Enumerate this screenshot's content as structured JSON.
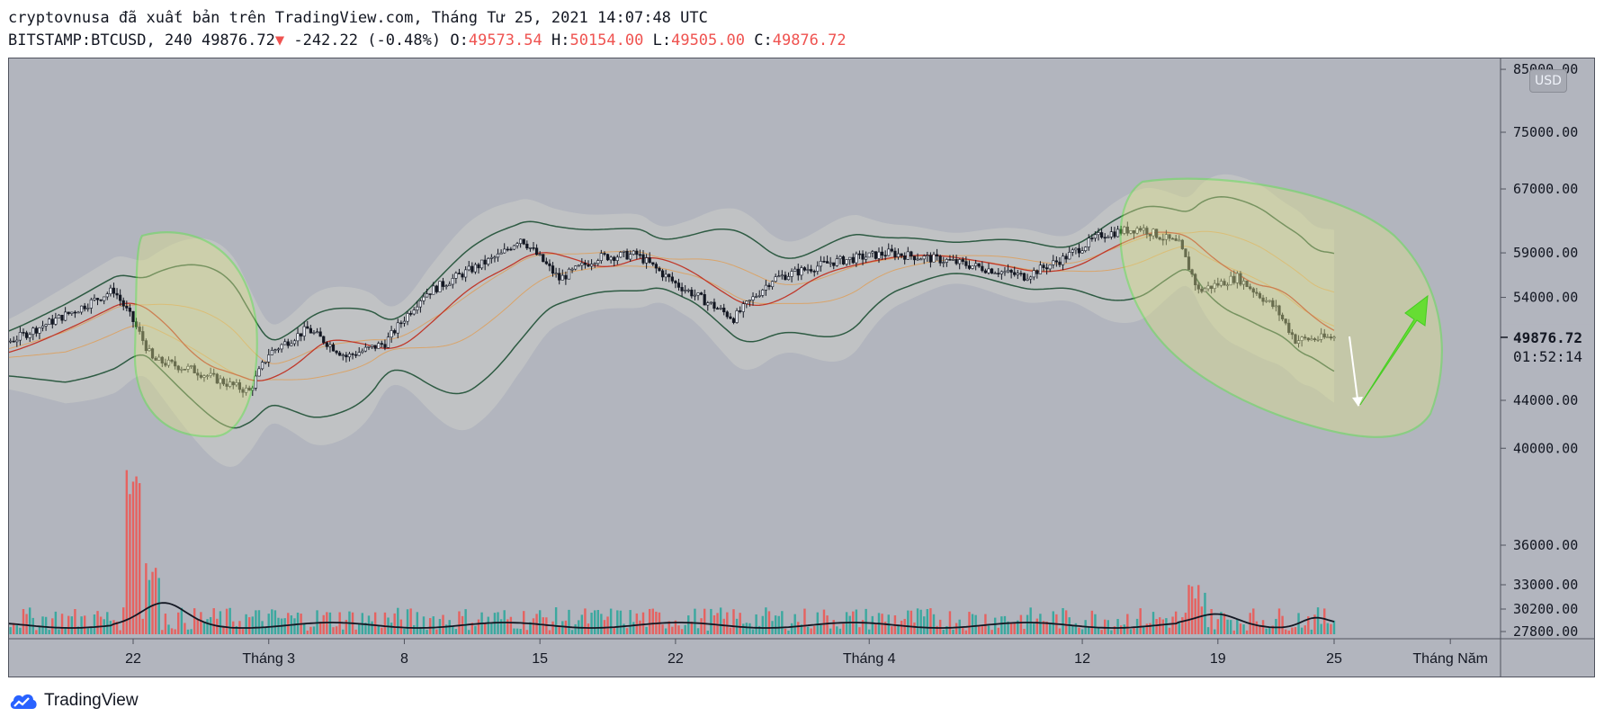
{
  "header": {
    "line1": "cryptovnusa đã xuất bản trên TradingView.com, Tháng Tư 25, 2021 14:07:48 UTC",
    "symbol": "BITSTAMP:BTCUSD, 240",
    "last": "49876.72",
    "arrow": "▼",
    "change": "-242.22 (-0.48%)",
    "o_label": "O:",
    "o_val": "49573.54",
    "h_label": "H:",
    "h_val": "50154.00",
    "l_label": "L:",
    "l_val": "49505.00",
    "c_label": "C:",
    "c_val": "49876.72"
  },
  "currency_badge": "USD",
  "brand": "TradingView",
  "chart_data": {
    "type": "candlestick",
    "symbol": "BITSTAMP:BTCUSD",
    "interval": "240",
    "y_scale": "log",
    "ylim": [
      43500,
      83500
    ],
    "price_ticks": [
      85000,
      75000,
      67000,
      59000,
      54000,
      44000,
      40000,
      36000,
      33000,
      30200,
      27800
    ],
    "price_tick_labels": [
      "85000.00",
      "75000.00",
      "67000.00",
      "59000.00",
      "54000.00",
      "44000.00",
      "40000.00",
      "36000.00",
      "33000.00",
      "30200.00",
      "27800.00"
    ],
    "last_price_label": "49876.72",
    "countdown_label": "01:52:14",
    "x_ticks": [
      "22",
      "Tháng 3",
      "8",
      "15",
      "22",
      "Tháng 4",
      "12",
      "19",
      "25",
      "Tháng Năm"
    ],
    "x_tick_dates": [
      "2021-02-22",
      "2021-03-01",
      "2021-03-08",
      "2021-03-15",
      "2021-03-22",
      "2021-04-01",
      "2021-04-12",
      "2021-04-19",
      "2021-04-25",
      "2021-05-01"
    ],
    "price_path": {
      "dates": [
        "2021-02-12",
        "2021-02-14",
        "2021-02-16",
        "2021-02-19",
        "2021-02-21",
        "2021-02-22",
        "2021-02-23",
        "2021-02-25",
        "2021-02-27",
        "2021-02-28",
        "2021-03-01",
        "2021-03-03",
        "2021-03-05",
        "2021-03-07",
        "2021-03-09",
        "2021-03-11",
        "2021-03-13",
        "2021-03-14",
        "2021-03-16",
        "2021-03-18",
        "2021-03-20",
        "2021-03-22",
        "2021-03-25",
        "2021-03-27",
        "2021-03-30",
        "2021-04-02",
        "2021-04-05",
        "2021-04-07",
        "2021-04-09",
        "2021-04-11",
        "2021-04-13",
        "2021-04-15",
        "2021-04-17",
        "2021-04-18",
        "2021-04-20",
        "2021-04-22",
        "2021-04-23",
        "2021-04-25"
      ],
      "close": [
        47500,
        48300,
        49800,
        52600,
        54800,
        51500,
        47700,
        46800,
        45400,
        44800,
        48300,
        50700,
        48000,
        49300,
        54300,
        56600,
        58800,
        60800,
        56000,
        58500,
        58800,
        55500,
        51800,
        56000,
        57900,
        59000,
        58100,
        57200,
        56300,
        58300,
        61200,
        62000,
        60000,
        54700,
        56200,
        52800,
        49600,
        49877
      ]
    },
    "volume_indicator": {
      "type": "volume",
      "ticks": [
        36000,
        33000,
        30200,
        27800
      ]
    },
    "annotations": [
      {
        "type": "highlight-ellipse",
        "color": "#7cfc00",
        "period": [
          "2021-02-22",
          "2021-02-28"
        ]
      },
      {
        "type": "highlight-ellipse",
        "color": "#7cfc00",
        "period": [
          "2021-04-13",
          "2021-05-01"
        ]
      },
      {
        "type": "arrow",
        "color": "#ffffff",
        "direction": "down"
      },
      {
        "type": "arrow",
        "color": "#66dd33",
        "direction": "up"
      }
    ],
    "colors": {
      "background": "#b2b5be",
      "up": "#26a69a",
      "down": "#ef5350",
      "candle": "#131722",
      "highlight": "#7cfc00"
    }
  }
}
